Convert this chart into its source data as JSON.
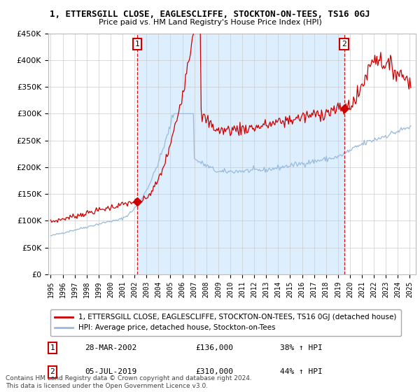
{
  "title": "1, ETTERSGILL CLOSE, EAGLESCLIFFE, STOCKTON-ON-TEES, TS16 0GJ",
  "subtitle": "Price paid vs. HM Land Registry's House Price Index (HPI)",
  "legend_line1": "1, ETTERSGILL CLOSE, EAGLESCLIFFE, STOCKTON-ON-TEES, TS16 0GJ (detached house)",
  "legend_line2": "HPI: Average price, detached house, Stockton-on-Tees",
  "footer": "Contains HM Land Registry data © Crown copyright and database right 2024.\nThis data is licensed under the Open Government Licence v3.0.",
  "sale1_date": "28-MAR-2002",
  "sale1_price": 136000,
  "sale1_label": "38% ↑ HPI",
  "sale2_date": "05-JUL-2019",
  "sale2_price": 310000,
  "sale2_label": "44% ↑ HPI",
  "sale1_x": 2002.23,
  "sale2_x": 2019.51,
  "red_color": "#cc0000",
  "blue_color": "#99bbdd",
  "fill_color": "#ddeeff",
  "dashed_color": "#cc0000",
  "ylim_min": 0,
  "ylim_max": 450000,
  "xlim_min": 1994.8,
  "xlim_max": 2025.5,
  "background_color": "#ffffff",
  "grid_color": "#cccccc"
}
